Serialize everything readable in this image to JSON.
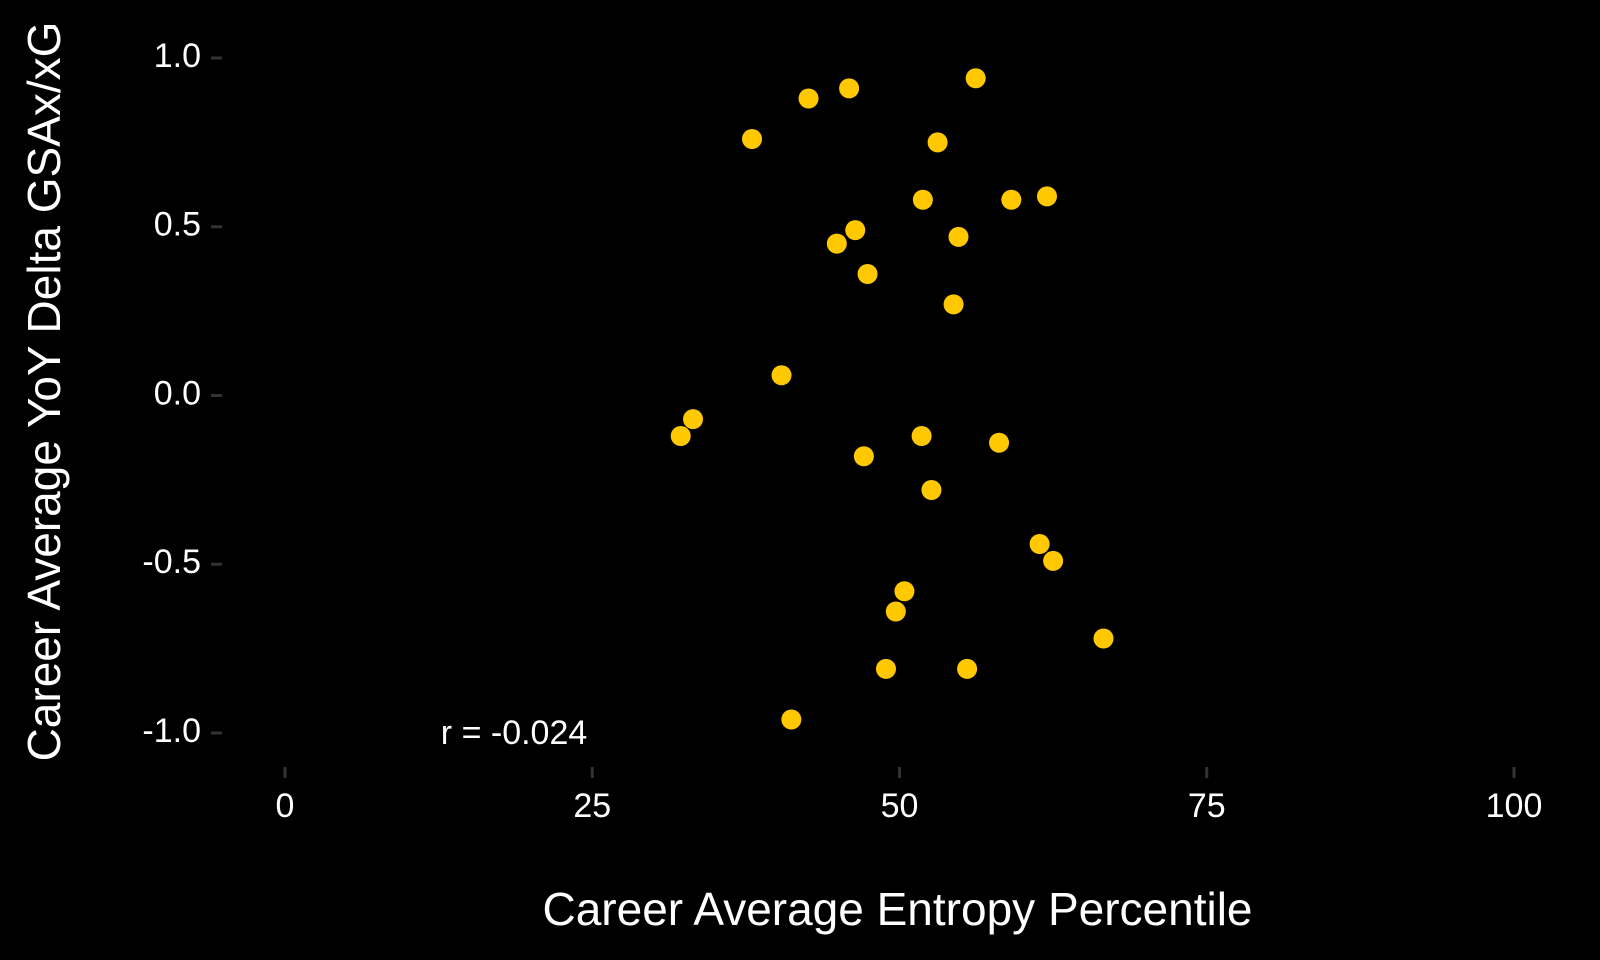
{
  "chart_data": {
    "type": "scatter",
    "xlabel": "Career Average Entropy Percentile",
    "ylabel": "Career Average YoY Delta GSAx/xG",
    "xlim": [
      0,
      100
    ],
    "ylim": [
      -1.0,
      1.0
    ],
    "x_ticks": [
      0,
      25,
      50,
      75,
      100
    ],
    "x_tick_labels": [
      "0",
      "25",
      "50",
      "75",
      "100"
    ],
    "y_ticks": [
      1.0,
      0.5,
      0.0,
      -0.5,
      -1.0
    ],
    "y_tick_labels": [
      "1.0",
      "0.5",
      "0.0",
      "-0.5",
      "-1.0"
    ],
    "grid": false,
    "background": "#000000",
    "point_color": "#FFC800",
    "annotation": {
      "text": "r =  -0.024",
      "x": 20,
      "y": -1.0
    },
    "points": [
      {
        "x": 56.2,
        "y": 0.94
      },
      {
        "x": 45.9,
        "y": 0.91
      },
      {
        "x": 42.6,
        "y": 0.88
      },
      {
        "x": 38.0,
        "y": 0.76
      },
      {
        "x": 53.1,
        "y": 0.75
      },
      {
        "x": 51.9,
        "y": 0.58
      },
      {
        "x": 59.1,
        "y": 0.58
      },
      {
        "x": 62.0,
        "y": 0.59
      },
      {
        "x": 46.4,
        "y": 0.49
      },
      {
        "x": 44.9,
        "y": 0.45
      },
      {
        "x": 54.8,
        "y": 0.47
      },
      {
        "x": 47.4,
        "y": 0.36
      },
      {
        "x": 54.4,
        "y": 0.27
      },
      {
        "x": 40.4,
        "y": 0.06
      },
      {
        "x": 33.2,
        "y": -0.07
      },
      {
        "x": 32.2,
        "y": -0.12
      },
      {
        "x": 51.8,
        "y": -0.12
      },
      {
        "x": 58.1,
        "y": -0.14
      },
      {
        "x": 47.1,
        "y": -0.18
      },
      {
        "x": 52.6,
        "y": -0.28
      },
      {
        "x": 61.4,
        "y": -0.44
      },
      {
        "x": 62.5,
        "y": -0.49
      },
      {
        "x": 50.4,
        "y": -0.58
      },
      {
        "x": 49.7,
        "y": -0.64
      },
      {
        "x": 66.6,
        "y": -0.72
      },
      {
        "x": 48.9,
        "y": -0.81
      },
      {
        "x": 55.5,
        "y": -0.81
      },
      {
        "x": 41.2,
        "y": -0.96
      }
    ]
  }
}
